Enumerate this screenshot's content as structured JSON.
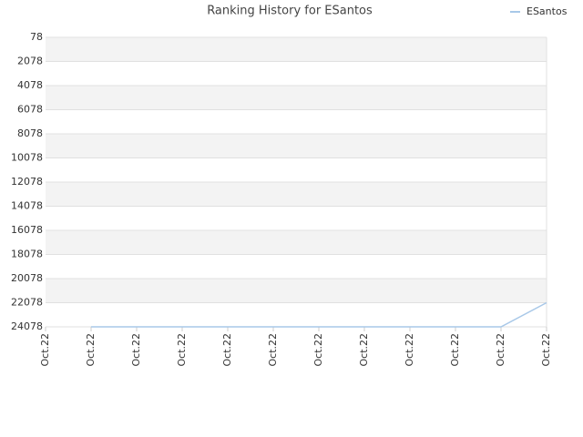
{
  "chart_data": {
    "type": "line",
    "title": "Ranking History for ESantos",
    "categories": [
      "Oct.22",
      "Oct.22",
      "Oct.22",
      "Oct.22",
      "Oct.22",
      "Oct.22",
      "Oct.22",
      "Oct.22",
      "Oct.22",
      "Oct.22",
      "Oct.22",
      "Oct.22"
    ],
    "series": [
      {
        "name": "ESantos",
        "color": "#a8c8e8",
        "values": [
          null,
          24078,
          24078,
          24078,
          24078,
          24078,
          24078,
          24078,
          24078,
          24078,
          24078,
          22078
        ]
      }
    ],
    "ylim": [
      78,
      24078
    ],
    "y_inverted": true,
    "yticks": [
      78,
      2078,
      4078,
      6078,
      8078,
      10078,
      12078,
      14078,
      16078,
      18078,
      20078,
      22078,
      24078
    ],
    "grid": true,
    "band_color": "#f3f3f3",
    "legend": "top-right"
  }
}
